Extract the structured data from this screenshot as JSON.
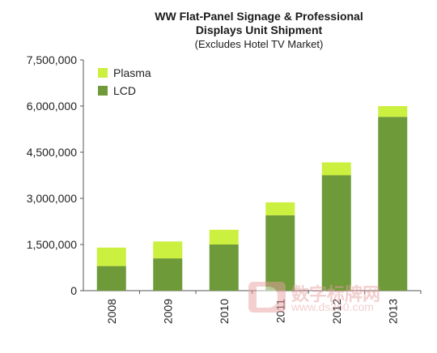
{
  "chart_data": {
    "type": "bar",
    "stacked": true,
    "title_lines": [
      "WW Flat-Panel Signage & Professional",
      "Displays Unit Shipment"
    ],
    "subtitle": "(Excludes Hotel TV Market)",
    "categories": [
      "2008",
      "2009",
      "2010",
      "2011",
      "2012",
      "2013"
    ],
    "series": [
      {
        "name": "LCD",
        "color": "#6f9a3a",
        "values": [
          800000,
          1050000,
          1500000,
          2450000,
          3750000,
          5650000
        ]
      },
      {
        "name": "Plasma",
        "color": "#ccf040",
        "values": [
          600000,
          550000,
          480000,
          420000,
          420000,
          350000
        ]
      }
    ],
    "legend_order": [
      "Plasma",
      "LCD"
    ],
    "y_ticks": [
      "7,500,000",
      "6,000,000",
      "4,500,000",
      "3,000,000",
      "1,500,000",
      "0"
    ],
    "ylim": [
      0,
      7500000
    ],
    "grid": false,
    "legend_position": "top-left"
  },
  "watermark": {
    "line1": "数字标牌网",
    "line2": "www.ds360.com"
  }
}
